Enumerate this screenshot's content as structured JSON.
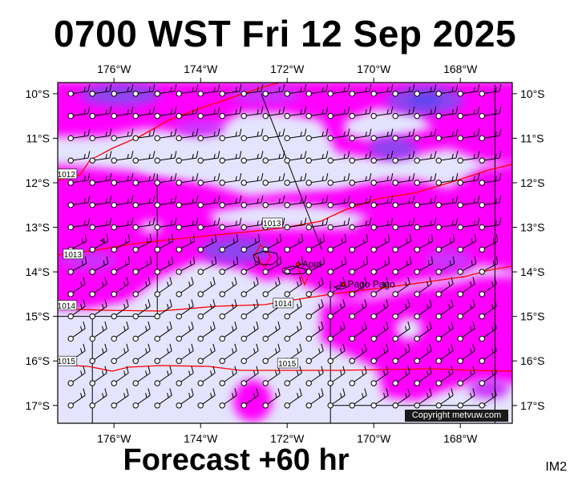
{
  "title": "0700 WST Fri 12 Sep 2025",
  "subtitle": "Forecast +60 hr",
  "tag": "IM2",
  "copyright": "Copyright metvuw.com",
  "lon_labels": [
    "176°W",
    "174°W",
    "172°W",
    "170°W",
    "168°W"
  ],
  "lat_labels": [
    "10°S",
    "11°S",
    "12°S",
    "13°S",
    "14°S",
    "15°S",
    "16°S",
    "17°S"
  ],
  "cities": [
    {
      "name": "Apia",
      "lon": -171.75,
      "lat": -13.83
    },
    {
      "name": "Pago Pago",
      "lon": -170.7,
      "lat": -14.28
    }
  ],
  "isobars": [
    {
      "label": "1012",
      "lon": -177.1,
      "lat": -11.8
    },
    {
      "label": "1013",
      "lon": -172.35,
      "lat": -12.9
    },
    {
      "label": "1013",
      "lon": -176.95,
      "lat": -13.6
    },
    {
      "label": "1014",
      "lon": -172.1,
      "lat": -14.7
    },
    {
      "label": "1014",
      "lon": -177.1,
      "lat": -14.75
    },
    {
      "label": "1015",
      "lon": -172.0,
      "lat": -16.05
    },
    {
      "label": "1015",
      "lon": -177.1,
      "lat": -16.0
    }
  ],
  "colors": {
    "pale": "#e4e4ff",
    "magenta": "#ff00ff",
    "violet": "#cc33ff",
    "purple": "#8f45ef",
    "deep": "#5a45f0",
    "isobar": "#ff0000",
    "line": "#000000"
  }
}
